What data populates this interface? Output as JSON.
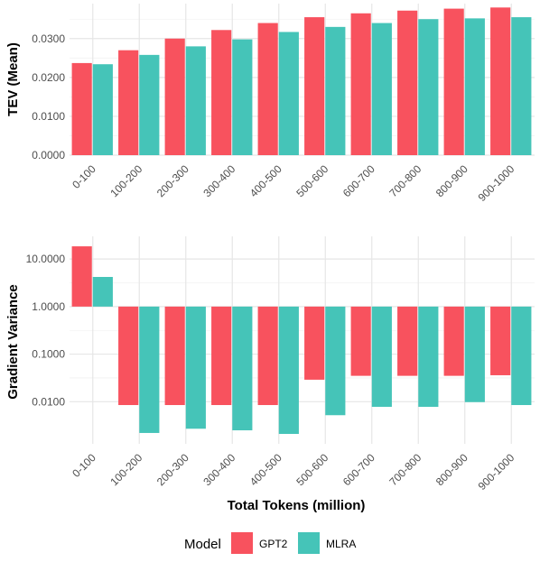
{
  "chart_data": [
    {
      "type": "bar",
      "title": "",
      "xlabel": "",
      "ylabel": "TEV (Mean)",
      "ylim": [
        0,
        0.039
      ],
      "yticks": [
        0.0,
        0.01,
        0.02,
        0.03
      ],
      "ytick_labels": [
        "0.0000",
        "0.0100",
        "0.0200",
        "0.0300"
      ],
      "categories": [
        "0-100",
        "100-200",
        "200-300",
        "300-400",
        "400-500",
        "500-600",
        "600-700",
        "700-800",
        "800-900",
        "900-1000"
      ],
      "series": [
        {
          "name": "GPT2",
          "color": "#F8525E",
          "values": [
            0.0237,
            0.027,
            0.03,
            0.0322,
            0.034,
            0.0355,
            0.0365,
            0.0372,
            0.0377,
            0.038
          ]
        },
        {
          "name": "MLRA",
          "color": "#45C4B8",
          "values": [
            0.0234,
            0.0258,
            0.028,
            0.0298,
            0.0317,
            0.033,
            0.034,
            0.035,
            0.0352,
            0.0355
          ]
        }
      ],
      "grid": true
    },
    {
      "type": "bar",
      "title": "",
      "xlabel": "Total Tokens (million)",
      "ylabel": "Gradient Variance",
      "yscale": "log",
      "baseline": 1.0,
      "ylim": [
        0.0013,
        30
      ],
      "yticks": [
        0.01,
        0.1,
        1.0,
        10.0
      ],
      "ytick_labels": [
        "0.0100",
        "0.1000",
        "1.0000",
        "10.0000"
      ],
      "categories": [
        "0-100",
        "100-200",
        "200-300",
        "300-400",
        "400-500",
        "500-600",
        "600-700",
        "700-800",
        "800-900",
        "900-1000"
      ],
      "series": [
        {
          "name": "GPT2",
          "color": "#F8525E",
          "values": [
            18.5,
            0.0085,
            0.0085,
            0.0085,
            0.0085,
            0.029,
            0.035,
            0.035,
            0.035,
            0.036
          ]
        },
        {
          "name": "MLRA",
          "color": "#45C4B8",
          "values": [
            4.2,
            0.0022,
            0.0027,
            0.0025,
            0.0021,
            0.0052,
            0.0078,
            0.0078,
            0.0098,
            0.0085
          ]
        }
      ],
      "grid": true
    }
  ],
  "legend": {
    "title": "Model",
    "position": "bottom",
    "items": [
      {
        "label": "GPT2",
        "color": "#F8525E"
      },
      {
        "label": "MLRA",
        "color": "#45C4B8"
      }
    ]
  }
}
